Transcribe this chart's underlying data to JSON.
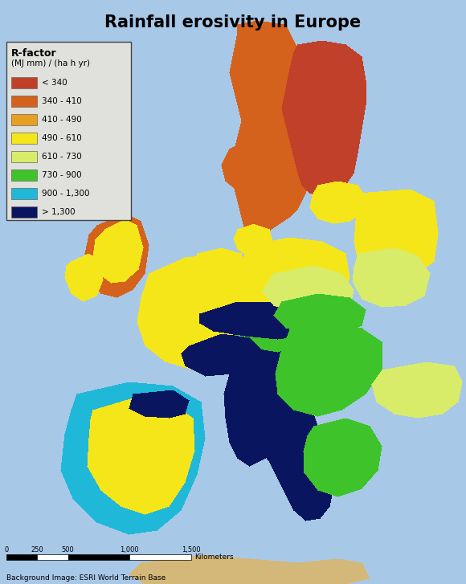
{
  "title": "Rainfall erosivity in Europe",
  "title_fontsize": 15,
  "title_fontweight": "bold",
  "legend_title_line1": "R-factor",
  "legend_title_line2": "(MJ mm) / (ha h yr)",
  "legend_items": [
    {
      "label": "< 340",
      "color": "#C0402A"
    },
    {
      "label": "340 - 410",
      "color": "#D4621C"
    },
    {
      "label": "410 - 490",
      "color": "#E8A020"
    },
    {
      "label": "490 - 610",
      "color": "#F5E61A"
    },
    {
      "label": "610 - 730",
      "color": "#D8EC6A"
    },
    {
      "label": "730 - 900",
      "color": "#3EC42A"
    },
    {
      "label": "900 - 1,300",
      "color": "#20B8D8"
    },
    {
      "label": "> 1,300",
      "color": "#0A1560"
    }
  ],
  "scalebar_ticks": [
    "0",
    "250",
    "500",
    "1,000",
    "1,500"
  ],
  "scalebar_label": "Kilometers",
  "attribution": "Background Image: ESRI World Terrain Base",
  "bg_color": "#A8C8E8",
  "legend_bg": "#E0E0DC",
  "figure_width": 5.8,
  "figure_height": 7.27,
  "dpi": 100
}
